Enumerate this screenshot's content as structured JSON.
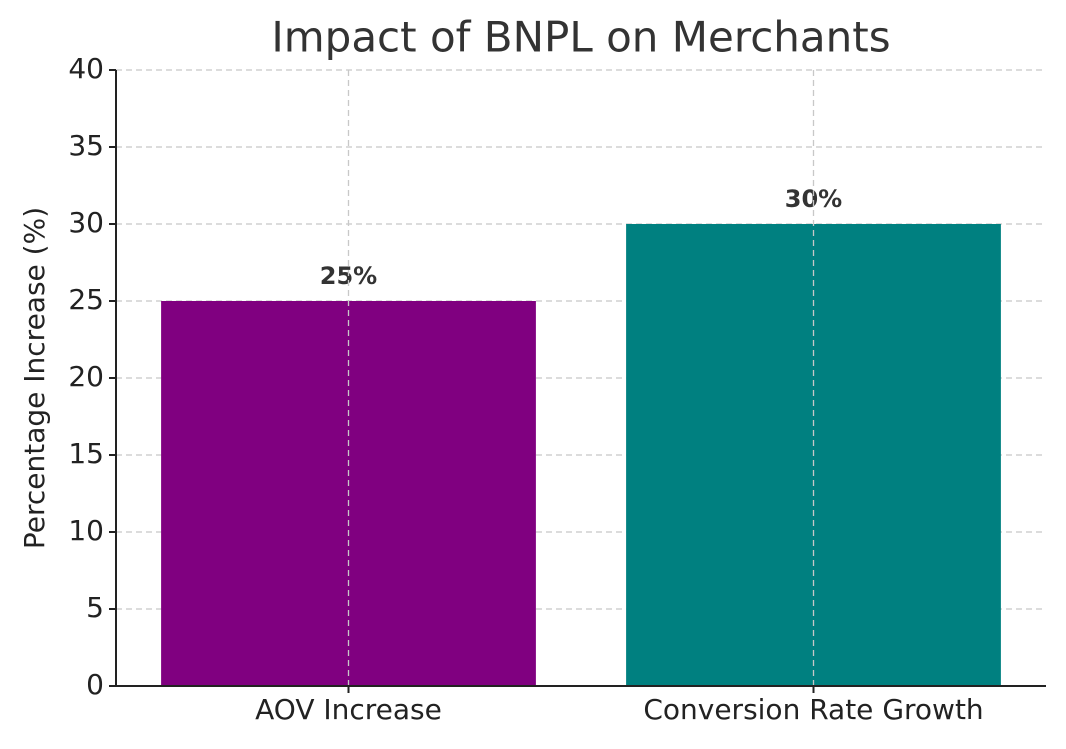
{
  "chart_data": {
    "type": "bar",
    "title": "Impact of BNPL on Merchants",
    "y_label": "Percentage Increase (%)",
    "categories": [
      "AOV Increase",
      "Conversion Rate Growth"
    ],
    "values": [
      25,
      30
    ],
    "value_labels": [
      "25%",
      "30%"
    ],
    "colors": [
      "#800080",
      "#008080"
    ],
    "ylim": [
      0,
      40
    ],
    "yticks": [
      0,
      5,
      10,
      15,
      20,
      25,
      30,
      35,
      40
    ],
    "grid": true
  }
}
